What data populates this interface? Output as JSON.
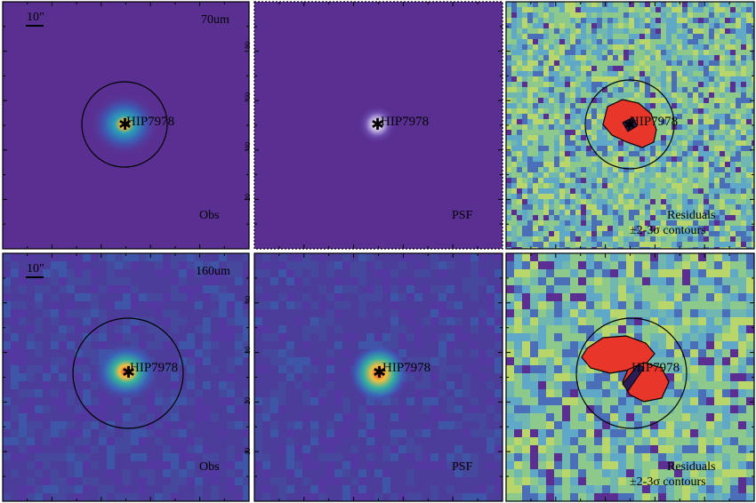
{
  "panels": [
    {
      "id": "p70-obs",
      "band": "70um",
      "corner_label": "Obs",
      "target": "HIP7978",
      "scale_bar": "10\"",
      "kind": "obs"
    },
    {
      "id": "p70-psf",
      "band": "",
      "corner_label": "PSF",
      "target": "HIP7978",
      "scale_bar": "",
      "kind": "psf"
    },
    {
      "id": "p70-res",
      "band": "",
      "corner_label": "Residuals",
      "corner_label2": "±2-3σ contours",
      "target": "HIP7978",
      "scale_bar": "",
      "kind": "res"
    },
    {
      "id": "p160-obs",
      "band": "160um",
      "corner_label": "Obs",
      "target": "HIP7978",
      "scale_bar": "10\"",
      "kind": "obs"
    },
    {
      "id": "p160-psf",
      "band": "",
      "corner_label": "PSF",
      "target": "HIP7978",
      "scale_bar": "",
      "kind": "psf"
    },
    {
      "id": "p160-res",
      "band": "",
      "corner_label": "Residuals",
      "corner_label2": "±2-3σ contours",
      "target": "HIP7978",
      "scale_bar": "",
      "kind": "res"
    }
  ],
  "psf_tick_labels": {
    "row1": [
      "20",
      "40",
      "60",
      "80"
    ],
    "row2": [
      "10",
      "20",
      "30",
      "40"
    ]
  },
  "colors": {
    "background": "#5b2e91",
    "frame_red": "#cc2222",
    "residual_core": "#e8362b",
    "contour": "#000000"
  }
}
